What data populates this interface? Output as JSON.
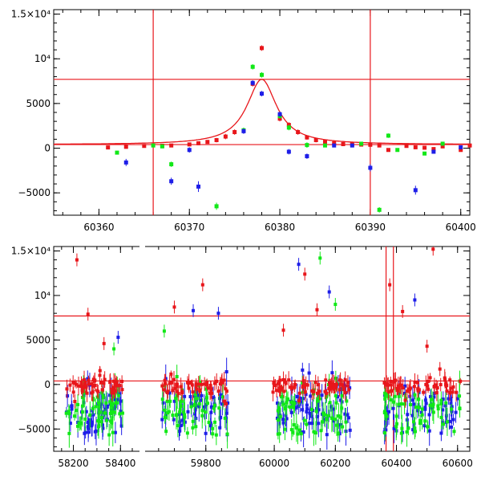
{
  "chart_data": [
    {
      "type": "scatter",
      "title": "",
      "xlabel": "",
      "ylabel": "",
      "xlim": [
        60355,
        60401
      ],
      "ylim": [
        -7500,
        15500
      ],
      "x_ticks": [
        60360,
        60370,
        60380,
        60390,
        60400
      ],
      "x_tick_labels": [
        "60360",
        "60370",
        "60380",
        "60390",
        "60400"
      ],
      "y_ticks": [
        -5000,
        0,
        5000,
        10000,
        15000
      ],
      "y_tick_labels": [
        "−5000",
        "0",
        "5000",
        "10⁴",
        "1.5×10⁴"
      ],
      "h_lines": [
        7700,
        400
      ],
      "v_lines": [
        60366,
        60390
      ],
      "line_color": "#e8161b",
      "model_curve": {
        "baseline": 400,
        "peak_x": 60378,
        "amplitude": 7300,
        "gamma": 2.0
      },
      "series": [
        {
          "color": "#e8161b",
          "points": [
            [
              60361,
              80,
              200
            ],
            [
              60363,
              150,
              200
            ],
            [
              60365,
              250,
              200
            ],
            [
              60367,
              280,
              200
            ],
            [
              60368,
              300,
              200
            ],
            [
              60370,
              420,
              200
            ],
            [
              60371,
              550,
              200
            ],
            [
              60372,
              700,
              200
            ],
            [
              60373,
              900,
              250
            ],
            [
              60374,
              1300,
              300
            ],
            [
              60375,
              1800,
              300
            ],
            [
              60377,
              7200,
              300
            ],
            [
              60378,
              11200,
              300
            ],
            [
              60380,
              3300,
              300
            ],
            [
              60381,
              2600,
              300
            ],
            [
              60382,
              1800,
              300
            ],
            [
              60383,
              1200,
              250
            ],
            [
              60384,
              900,
              250
            ],
            [
              60385,
              700,
              200
            ],
            [
              60386,
              550,
              200
            ],
            [
              60387,
              450,
              200
            ],
            [
              60388,
              420,
              200
            ],
            [
              60389,
              400,
              200
            ],
            [
              60390,
              380,
              200
            ],
            [
              60391,
              300,
              200
            ],
            [
              60392,
              -200,
              200
            ],
            [
              60394,
              250,
              200
            ],
            [
              60395,
              100,
              200
            ],
            [
              60396,
              50,
              200
            ],
            [
              60397,
              -100,
              200
            ],
            [
              60398,
              200,
              200
            ],
            [
              60400,
              -200,
              200
            ],
            [
              60401,
              300,
              200
            ]
          ]
        },
        {
          "color": "#11e817",
          "points": [
            [
              60362,
              -500,
              200
            ],
            [
              60366,
              300,
              200
            ],
            [
              60367,
              200,
              200
            ],
            [
              60368,
              -1800,
              300
            ],
            [
              60373,
              -6500,
              400
            ],
            [
              60376,
              2000,
              300
            ],
            [
              60377,
              9100,
              300
            ],
            [
              60378,
              8200,
              300
            ],
            [
              60380,
              3600,
              300
            ],
            [
              60381,
              2300,
              300
            ],
            [
              60383,
              350,
              300
            ],
            [
              60385,
              300,
              200
            ],
            [
              60389,
              500,
              200
            ],
            [
              60391,
              -6900,
              300
            ],
            [
              60392,
              1400,
              250
            ],
            [
              60393,
              -200,
              200
            ],
            [
              60396,
              -600,
              200
            ],
            [
              60398,
              500,
              200
            ]
          ]
        },
        {
          "color": "#1e1ee8",
          "points": [
            [
              60363,
              -1600,
              400
            ],
            [
              60368,
              -3700,
              400
            ],
            [
              60370,
              -200,
              300
            ],
            [
              60371,
              -4300,
              600
            ],
            [
              60376,
              1900,
              300
            ],
            [
              60377,
              7300,
              300
            ],
            [
              60378,
              6100,
              300
            ],
            [
              60380,
              3800,
              300
            ],
            [
              60381,
              -400,
              300
            ],
            [
              60383,
              -900,
              300
            ],
            [
              60386,
              300,
              200
            ],
            [
              60388,
              300,
              200
            ],
            [
              60390,
              -2200,
              400
            ],
            [
              60395,
              -4700,
              500
            ],
            [
              60397,
              -400,
              200
            ],
            [
              60400,
              100,
              200
            ]
          ]
        }
      ]
    },
    {
      "type": "scatter",
      "title": "",
      "xlabel": "",
      "ylabel": "",
      "segments": [
        {
          "xlim": [
            58120,
            58450
          ],
          "x_ticks": [
            58200,
            58400
          ],
          "x_tick_labels": [
            "58200",
            "58400"
          ]
        },
        {
          "xlim": [
            59630,
            59900
          ],
          "x_ticks": [
            59800
          ],
          "x_tick_labels": [
            "59800"
          ]
        },
        {
          "xlim": [
            59900,
            60640
          ],
          "x_ticks": [
            60000,
            60200,
            60400,
            60600
          ],
          "x_tick_labels": [
            "60000",
            "60200",
            "60400",
            "60600"
          ]
        }
      ],
      "ylim": [
        -7500,
        15500
      ],
      "y_ticks": [
        -5000,
        0,
        5000,
        10000,
        15000
      ],
      "y_tick_labels": [
        "−5000",
        "0",
        "5000",
        "10⁴",
        "1.5×10⁴"
      ],
      "h_lines": [
        7700,
        400
      ],
      "v_lines": [
        60366,
        60390
      ],
      "line_color": "#e8161b",
      "clusters": [
        {
          "segment": 0,
          "range": [
            58170,
            58410
          ],
          "count": 55
        },
        {
          "segment": 1,
          "range": [
            59660,
            59870
          ],
          "count": 55
        },
        {
          "segment": 2,
          "range": [
            59995,
            60250
          ],
          "count": 70
        },
        {
          "segment": 2,
          "range": [
            60360,
            60610
          ],
          "count": 60
        }
      ],
      "outliers": [
        {
          "segment": 0,
          "x": 58215,
          "y": 14000,
          "color": "#e8161b"
        },
        {
          "segment": 0,
          "x": 58262,
          "y": 7900,
          "color": "#e8161b"
        },
        {
          "segment": 0,
          "x": 58330,
          "y": 4600,
          "color": "#e8161b"
        },
        {
          "segment": 0,
          "x": 58390,
          "y": 5300,
          "color": "#1e1ee8"
        },
        {
          "segment": 0,
          "x": 58372,
          "y": 4000,
          "color": "#11e817"
        },
        {
          "segment": 1,
          "x": 59700,
          "y": 8700,
          "color": "#e8161b"
        },
        {
          "segment": 1,
          "x": 59760,
          "y": 8300,
          "color": "#1e1ee8"
        },
        {
          "segment": 1,
          "x": 59790,
          "y": 11200,
          "color": "#e8161b"
        },
        {
          "segment": 1,
          "x": 59840,
          "y": 8000,
          "color": "#1e1ee8"
        },
        {
          "segment": 1,
          "x": 59668,
          "y": 6000,
          "color": "#11e817"
        },
        {
          "segment": 2,
          "x": 60080,
          "y": 13500,
          "color": "#1e1ee8"
        },
        {
          "segment": 2,
          "x": 60100,
          "y": 12400,
          "color": "#e8161b"
        },
        {
          "segment": 2,
          "x": 60150,
          "y": 14200,
          "color": "#11e817"
        },
        {
          "segment": 2,
          "x": 60180,
          "y": 10400,
          "color": "#1e1ee8"
        },
        {
          "segment": 2,
          "x": 60200,
          "y": 9000,
          "color": "#11e817"
        },
        {
          "segment": 2,
          "x": 60140,
          "y": 8400,
          "color": "#e8161b"
        },
        {
          "segment": 2,
          "x": 60030,
          "y": 6100,
          "color": "#e8161b"
        },
        {
          "segment": 2,
          "x": 60378,
          "y": 11200,
          "color": "#e8161b"
        },
        {
          "segment": 2,
          "x": 60420,
          "y": 8200,
          "color": "#e8161b"
        },
        {
          "segment": 2,
          "x": 60460,
          "y": 9500,
          "color": "#1e1ee8"
        },
        {
          "segment": 2,
          "x": 60520,
          "y": 15200,
          "color": "#e8161b"
        },
        {
          "segment": 2,
          "x": 60500,
          "y": 4300,
          "color": "#e8161b"
        }
      ]
    }
  ]
}
